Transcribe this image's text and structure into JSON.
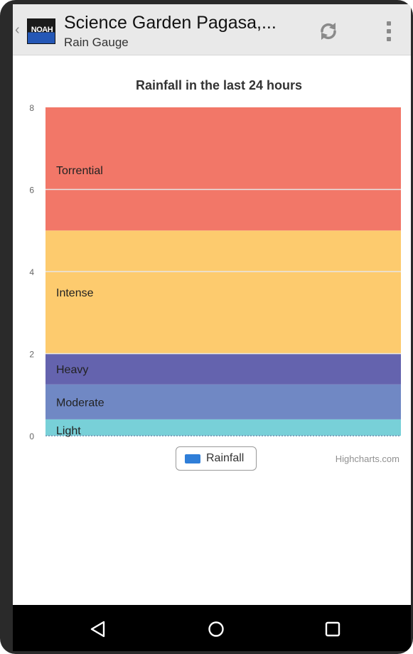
{
  "app": {
    "title": "Science Garden Pagasa,...",
    "subtitle": "Rain Gauge",
    "logo_text": "NOAH"
  },
  "chart_data": {
    "type": "bar",
    "title": "Rainfall in the last 24 hours",
    "ylim": [
      0,
      8
    ],
    "yticks": [
      0,
      2,
      4,
      6,
      8
    ],
    "grid": true,
    "series": [
      {
        "name": "Rainfall",
        "values": [
          0
        ]
      }
    ],
    "bands": [
      {
        "label": "Light",
        "from": 0,
        "to": 0.4,
        "color": "#78d0d8"
      },
      {
        "label": "Moderate",
        "from": 0.4,
        "to": 1.25,
        "color": "#7088c4"
      },
      {
        "label": "Heavy",
        "from": 1.25,
        "to": 2.0,
        "color": "#6463ae"
      },
      {
        "label": "Intense",
        "from": 2.0,
        "to": 5.0,
        "color": "#fdcb6e"
      },
      {
        "label": "Torrential",
        "from": 5.0,
        "to": 8.0,
        "color": "#f27768"
      }
    ],
    "legend": {
      "label": "Rainfall",
      "color": "#2f7ed8"
    },
    "credits": "Highcharts.com"
  },
  "navbar": {
    "back": "back-icon",
    "home": "home-icon",
    "recents": "recents-icon"
  }
}
